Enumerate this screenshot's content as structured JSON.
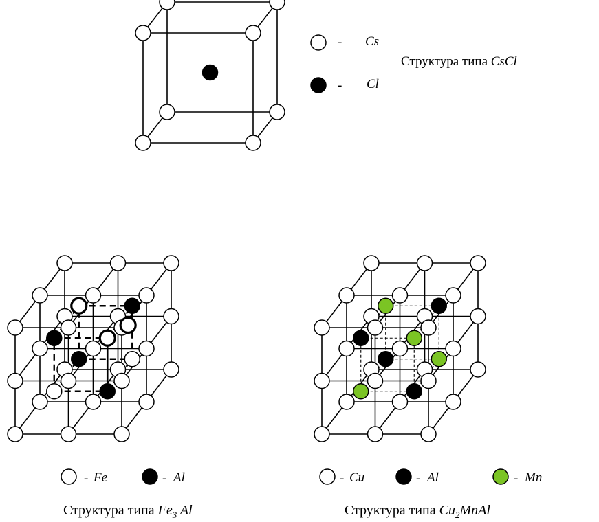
{
  "colors": {
    "white_atom": "#ffffff",
    "black_atom": "#000000",
    "green_atom": "#7bc424",
    "line": "#000000"
  },
  "cscl": {
    "legend": [
      {
        "symbol": "white",
        "dash": "-",
        "name": "Cs"
      },
      {
        "symbol": "black",
        "dash": "-",
        "name": "Cl"
      }
    ],
    "title_prefix": "Структура типа",
    "title_formula": "CsCl"
  },
  "fe3al": {
    "legend": [
      {
        "symbol": "white",
        "dash": "-",
        "name": "Fe"
      },
      {
        "symbol": "black",
        "dash": "-",
        "name": "Al"
      }
    ],
    "caption_prefix": "Структура типа",
    "caption_formula_a": "Fe",
    "caption_formula_sub": "3",
    "caption_formula_b": " Al"
  },
  "cu2mnal": {
    "legend": [
      {
        "symbol": "white",
        "dash": "-",
        "name": "Cu"
      },
      {
        "symbol": "black",
        "dash": "-",
        "name": "Al"
      },
      {
        "symbol": "green",
        "dash": "-",
        "name": "Mn"
      }
    ],
    "caption_prefix": "Структура типа",
    "caption_formula_a": "Cu",
    "caption_formula_sub": "2",
    "caption_formula_b": "MnAl"
  }
}
